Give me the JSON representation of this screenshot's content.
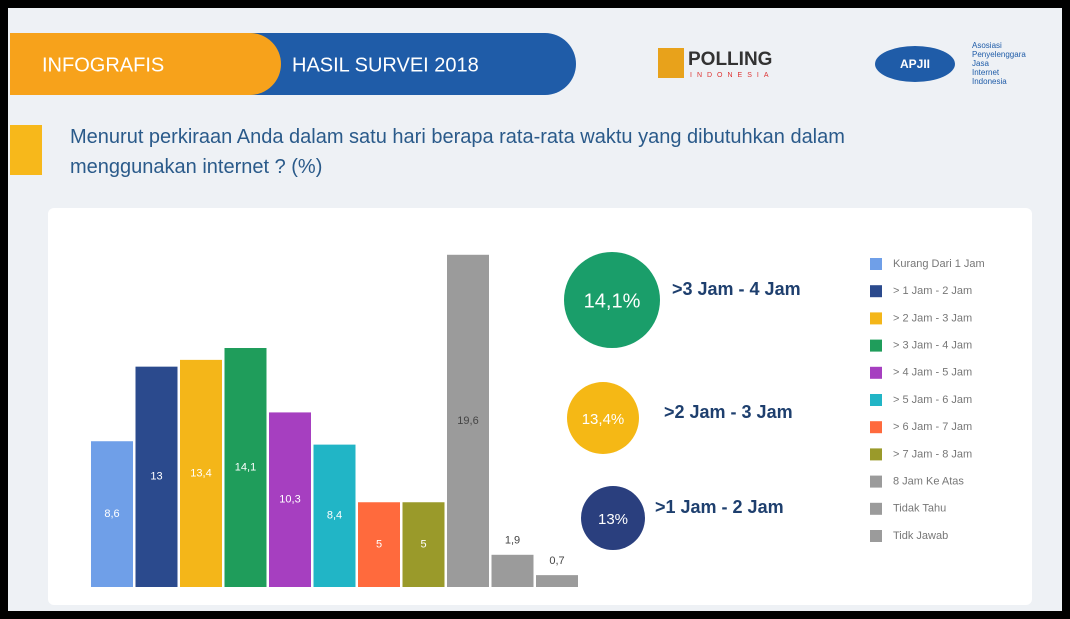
{
  "header": {
    "tab1": "INFOGRAFIS",
    "tab2": "HASIL SURVEI 2018",
    "logo1": "POLLING",
    "logo1_sub": "INDONESIA",
    "logo2": "APJII",
    "logo2_text": [
      "Asosiasi",
      "Penyelenggara",
      "Jasa",
      "Internet",
      "Indonesia"
    ]
  },
  "chart_data": {
    "type": "bar",
    "title": "Menurut perkiraan Anda dalam satu hari berapa rata-rata waktu yang dibutuhkan dalam menggunakan internet ? (%)",
    "categories": [
      "Kurang Dari 1 Jam",
      "> 1 Jam - 2 Jam",
      "> 2 Jam - 3 Jam",
      "> 3 Jam - 4 Jam",
      "> 4 Jam - 5 Jam",
      "> 5 Jam - 6 Jam",
      "> 6 Jam - 7 Jam",
      "> 7 Jam - 8 Jam",
      "8 Jam Ke Atas",
      "Tidak Tahu",
      "Tidk Jawab"
    ],
    "values": [
      8.6,
      13,
      13.4,
      14.1,
      10.3,
      8.4,
      5,
      5,
      19.6,
      1.9,
      0.7
    ],
    "value_labels": [
      "8,6",
      "13",
      "13,4",
      "14,1",
      "10,3",
      "8,4",
      "5",
      "5",
      "19,6",
      "1,9",
      "0,7"
    ],
    "colors": [
      "#6f9fe8",
      "#2b4a8d",
      "#f4b619",
      "#1f9d5b",
      "#a63fc0",
      "#21b5c6",
      "#ff6a3d",
      "#9a9a2a",
      "#9b9b9b",
      "#9b9b9b",
      "#9b9b9b"
    ],
    "ylim": [
      0,
      20
    ],
    "legend": "right",
    "highlights": [
      {
        "value": 14.1,
        "label": "14,1%",
        "text": ">3 Jam - 4 Jam",
        "color": "#1a9e6a"
      },
      {
        "value": 13.4,
        "label": "13,4%",
        "text": ">2 Jam - 3 Jam",
        "color": "#f5b815"
      },
      {
        "value": 13,
        "label": "13%",
        "text": ">1 Jam - 2 Jam",
        "color": "#2a3f7e"
      }
    ]
  }
}
